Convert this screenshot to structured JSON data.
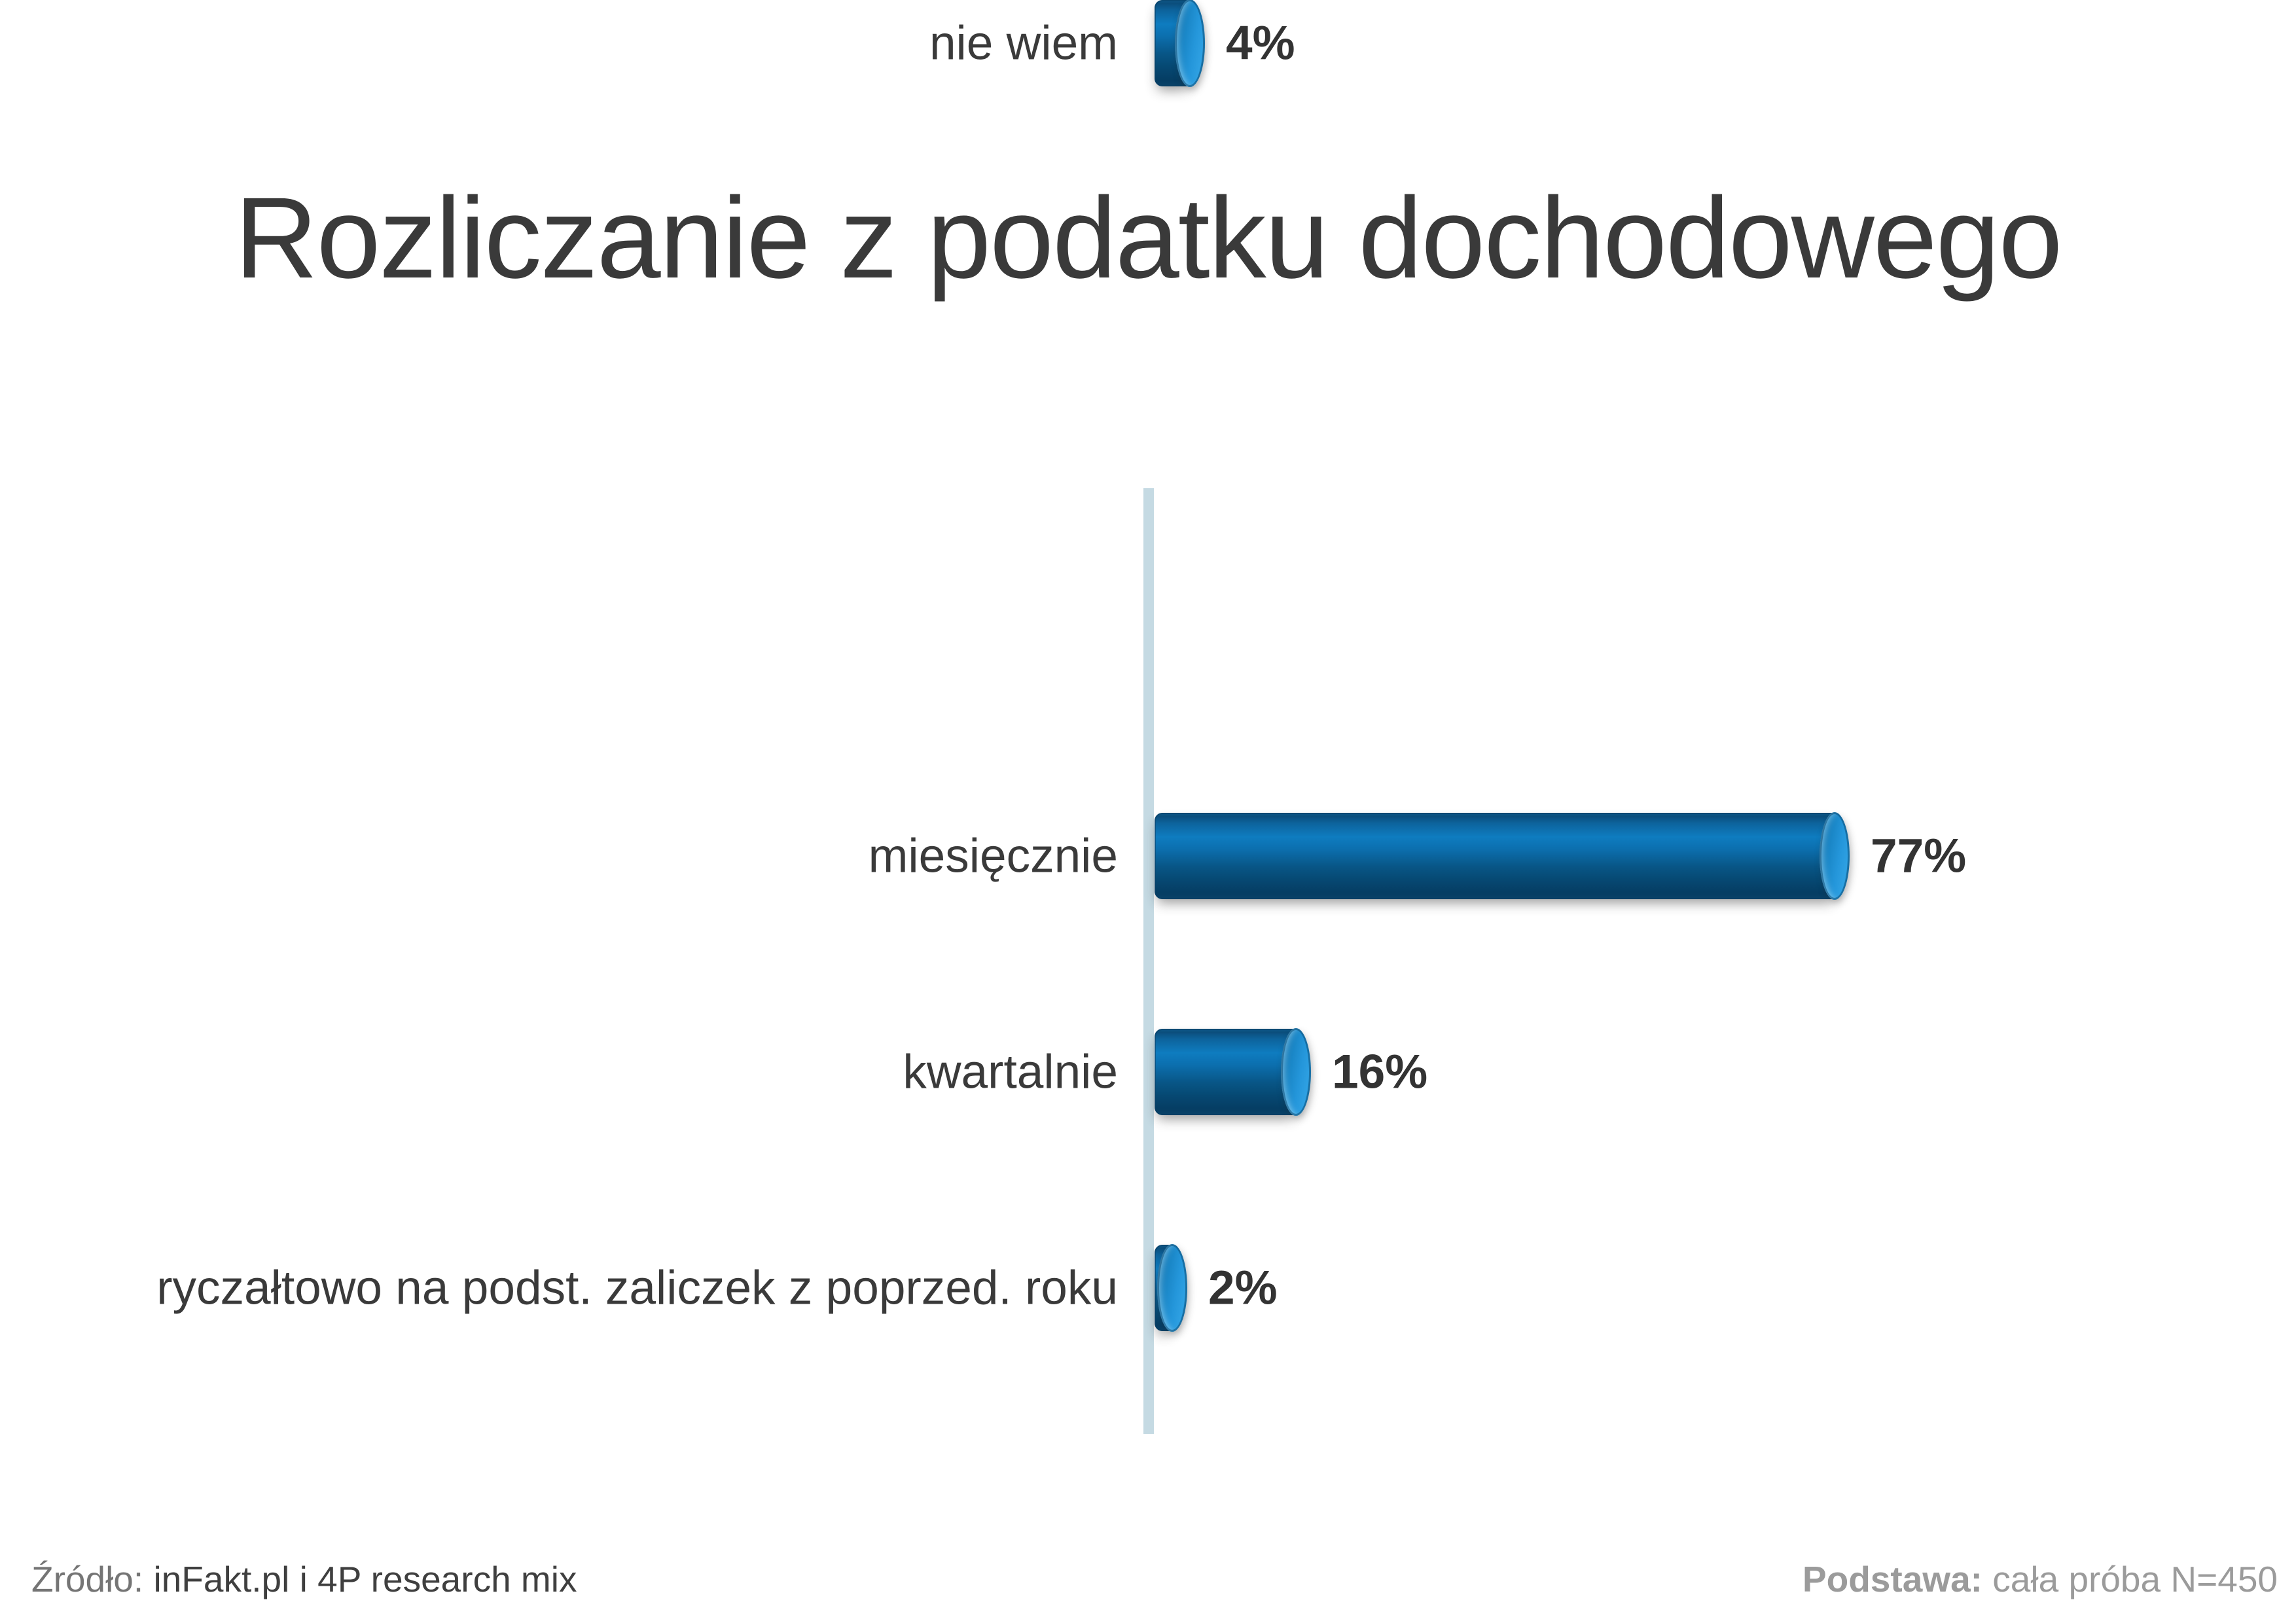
{
  "title": "Rozliczanie z podatku dochodowego",
  "chart_data": {
    "type": "bar",
    "orientation": "horizontal",
    "title": "Rozliczanie z podatku dochodowego",
    "categories": [
      "miesięcznie",
      "kwartalnie",
      "ryczałtowo na podst. zaliczek z poprzed. roku",
      "nie wiem"
    ],
    "values": [
      77,
      16,
      2,
      4
    ],
    "value_labels": [
      "77%",
      "16%",
      "2%",
      "4%"
    ],
    "unit": "%",
    "xlim": [
      0,
      100
    ],
    "grid": false,
    "legend": false,
    "bar_style": "3d-cylinder",
    "bar_color": "#0e7cc0",
    "bar_end_cap_color": "#2496da",
    "axis_line_color": "#c5dae3",
    "label_color": "#3a3a3a"
  },
  "footer": {
    "source_label": "Źródło:",
    "source_value": "inFakt.pl i 4P research mix",
    "base_label": "Podstawa:",
    "base_value": "cała próba N=450"
  }
}
